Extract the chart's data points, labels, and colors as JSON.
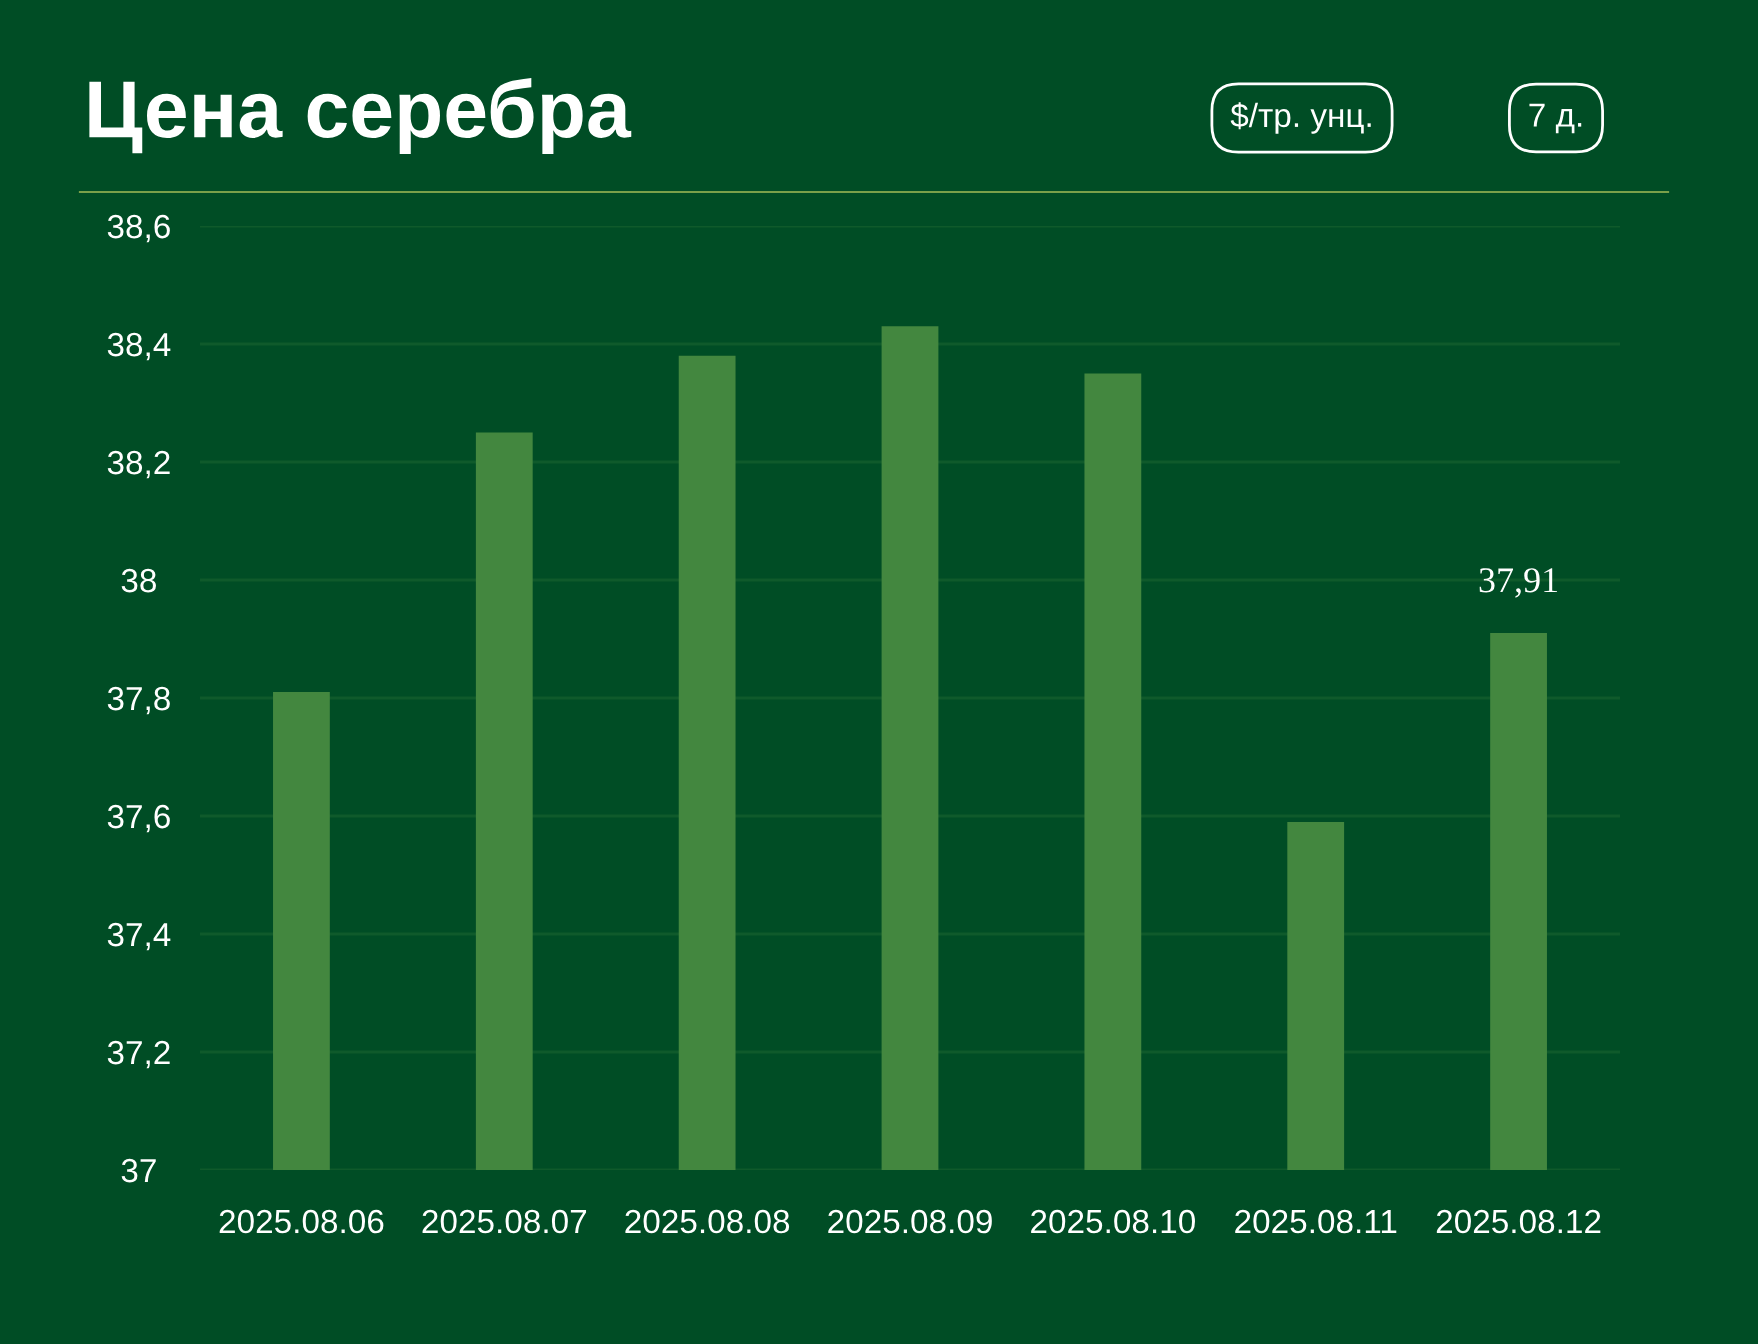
{
  "chart_data": {
    "type": "bar",
    "title": "Цена серебра",
    "annotations": [
      "$/тр. унц.",
      "7 д."
    ],
    "categories": [
      "2025.08.06",
      "2025.08.07",
      "2025.08.08",
      "2025.08.09",
      "2025.08.10",
      "2025.08.11",
      "2025.08.12"
    ],
    "values": [
      37.81,
      38.25,
      38.38,
      38.43,
      38.35,
      37.59,
      37.91
    ],
    "value_labels": [
      null,
      null,
      null,
      null,
      null,
      null,
      "37,91"
    ],
    "color": "#43873f",
    "ylim": [
      37,
      38.6
    ],
    "yticks": [
      {
        "value": 37,
        "label": "37"
      },
      {
        "value": 37.2,
        "label": "37,2"
      },
      {
        "value": 37.4,
        "label": "37,4"
      },
      {
        "value": 37.6,
        "label": "37,6"
      },
      {
        "value": 37.8,
        "label": "37,8"
      },
      {
        "value": 38,
        "label": "38"
      },
      {
        "value": 38.2,
        "label": "38,2"
      },
      {
        "value": 38.4,
        "label": "38,4"
      },
      {
        "value": 38.6,
        "label": "38,6"
      }
    ],
    "grid": "y",
    "legend": false
  }
}
